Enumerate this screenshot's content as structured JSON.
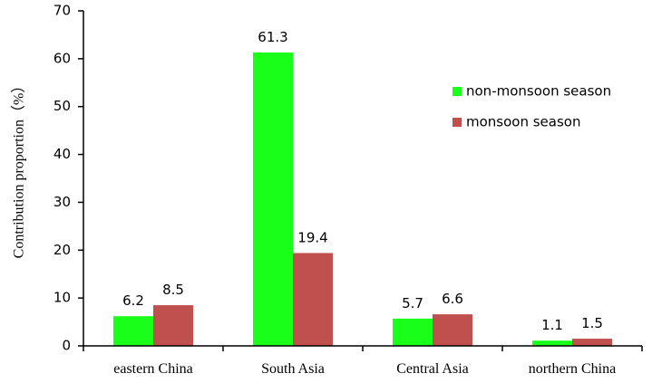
{
  "chart_data": {
    "type": "bar",
    "categories": [
      "eastern China",
      "South Asia",
      "Central Asia",
      "northern China"
    ],
    "series": [
      {
        "name": "non-monsoon season",
        "values": [
          6.2,
          61.3,
          5.7,
          1.1
        ],
        "labels": [
          "6.2",
          "61.3",
          "5.7",
          "1.1"
        ],
        "color": "#19ff19"
      },
      {
        "name": "monsoon season",
        "values": [
          8.5,
          19.4,
          6.6,
          1.5
        ],
        "labels": [
          "8.5",
          "19.4",
          "6.6",
          "1.5"
        ],
        "color": "#c0504d"
      }
    ],
    "title": "",
    "xlabel": "",
    "ylabel": "Contribution proportion（%）",
    "ylim": [
      0,
      70
    ],
    "yticks": [
      0,
      10,
      20,
      30,
      40,
      50,
      60,
      70
    ],
    "grid": false,
    "legend_position": "top-right"
  }
}
